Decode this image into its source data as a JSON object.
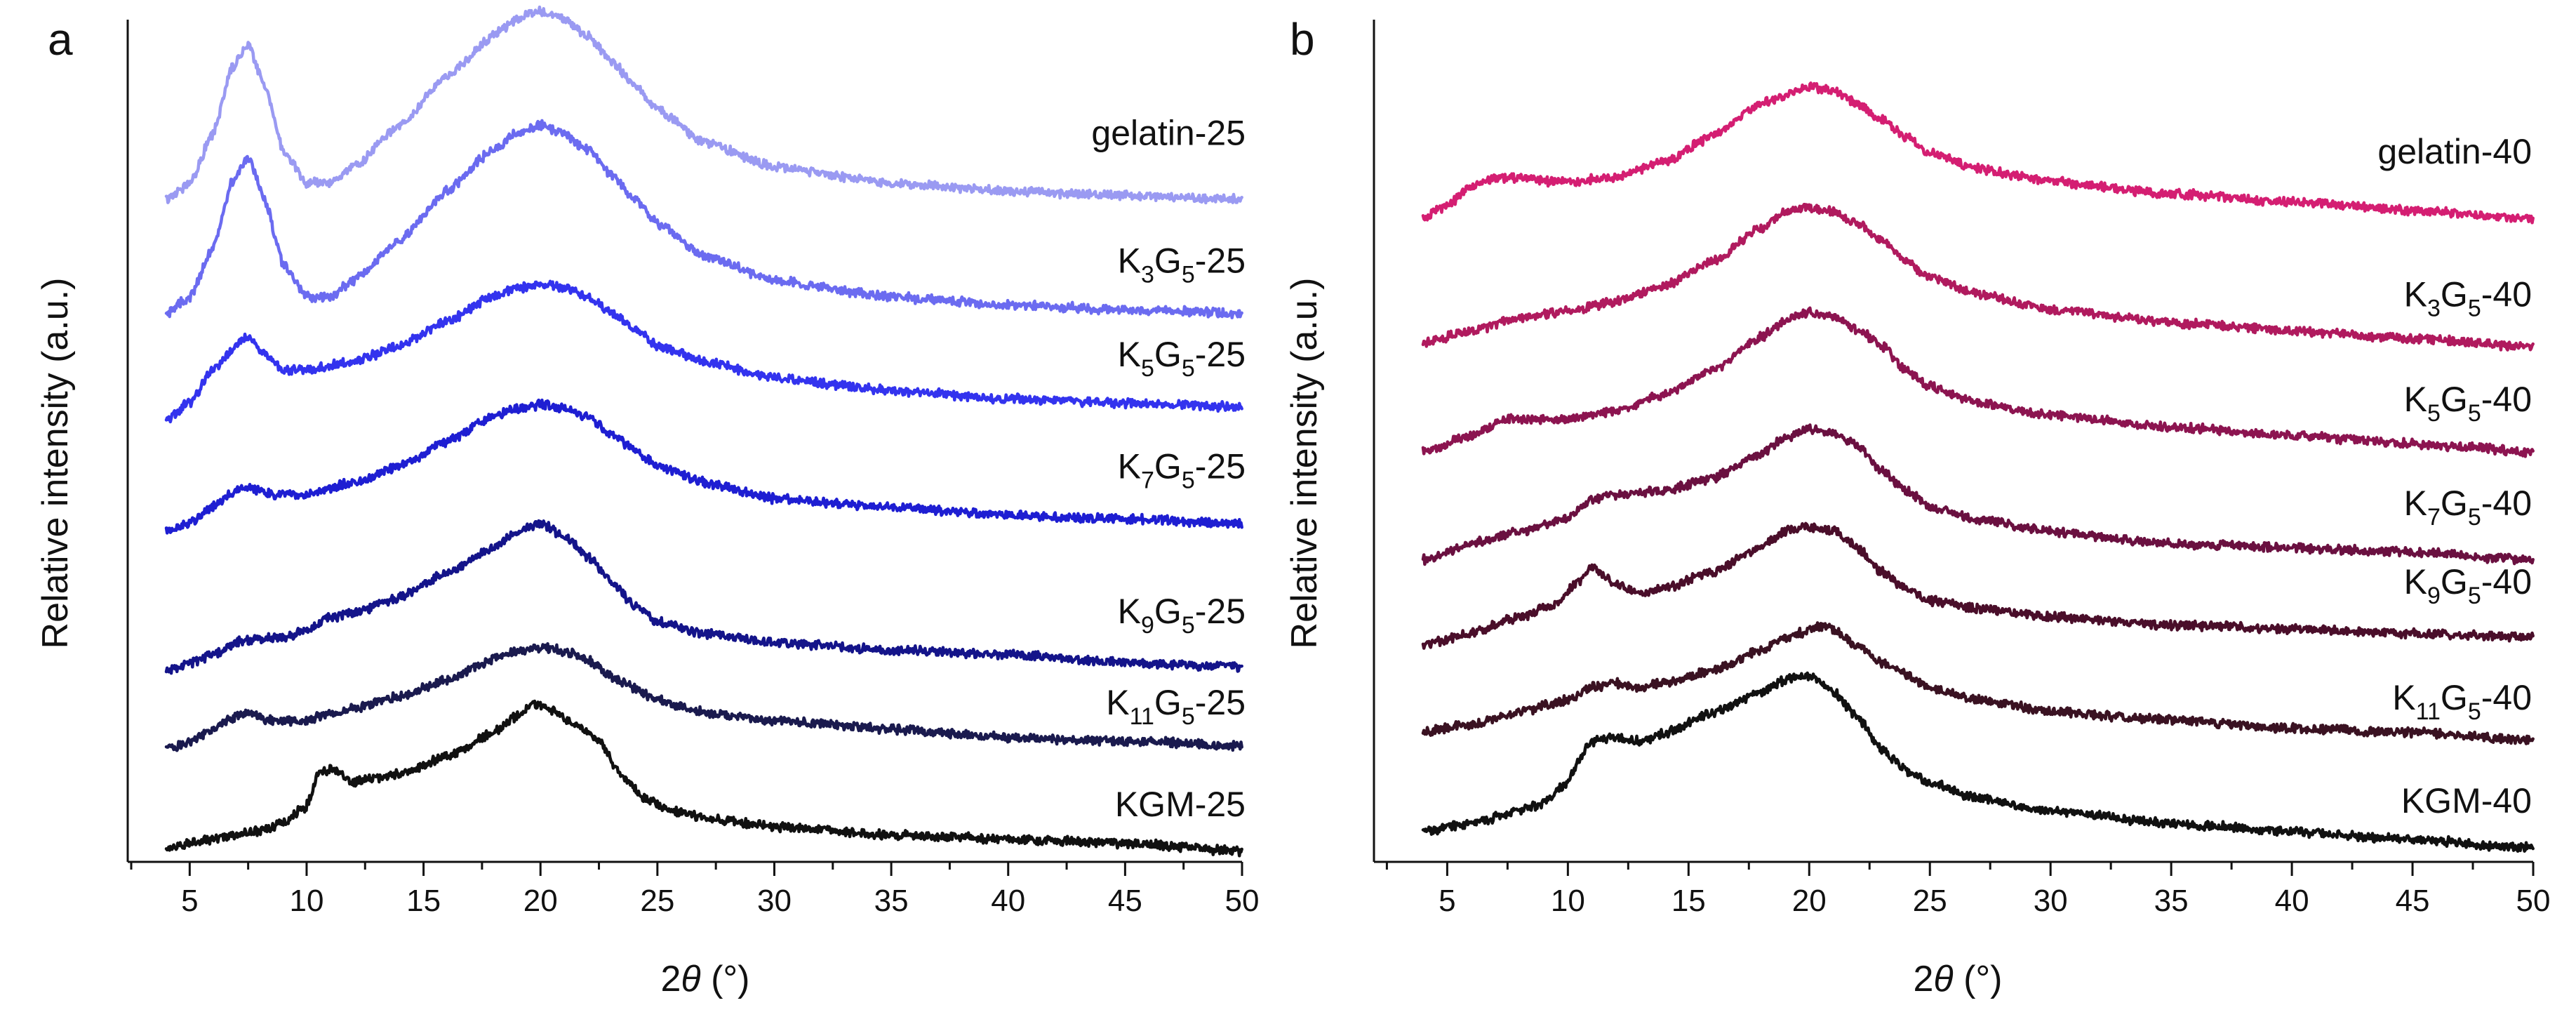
{
  "chart_data": [
    {
      "type": "line",
      "panel": "a",
      "xlabel_prefix": "2",
      "xlabel_symbol": "θ",
      "xlabel_unit": " (°)",
      "ylabel": "Relative intensity (a.u.)",
      "xlim": [
        3,
        50
      ],
      "ylim": [
        0,
        1
      ],
      "x_ticks": [
        5,
        10,
        15,
        20,
        25,
        30,
        35,
        40,
        45,
        50
      ],
      "grid": false,
      "series": [
        {
          "name": "gelatin-25",
          "label_parts": [
            [
              "gelatin-25",
              false
            ]
          ],
          "color": "#9a9af2",
          "offset": 0.808,
          "scale": 1.0,
          "x": [
            4,
            5,
            6,
            6.8,
            7.5,
            8.2,
            9,
            10,
            11,
            12,
            14,
            16,
            18,
            19,
            20,
            21,
            22,
            23,
            24,
            25,
            27,
            30,
            35,
            40,
            45,
            50
          ],
          "y": [
            0.0,
            0.02,
            0.08,
            0.16,
            0.19,
            0.14,
            0.06,
            0.02,
            0.02,
            0.04,
            0.09,
            0.15,
            0.2,
            0.22,
            0.23,
            0.22,
            0.2,
            0.17,
            0.14,
            0.11,
            0.07,
            0.04,
            0.02,
            0.01,
            0.005,
            0.0
          ]
        },
        {
          "name": "K3G5-25",
          "label_parts": [
            [
              "K",
              false
            ],
            [
              "3",
              true
            ],
            [
              "G",
              false
            ],
            [
              "5",
              true
            ],
            [
              "-25",
              false
            ]
          ],
          "color": "#6b6bf0",
          "offset": 0.669,
          "scale": 1.0,
          "x": [
            4,
            5,
            6,
            6.8,
            7.5,
            8.2,
            9,
            10,
            11,
            12,
            14,
            16,
            18,
            19,
            20,
            21,
            22,
            23,
            24,
            25,
            27,
            30,
            35,
            40,
            45,
            50
          ],
          "y": [
            0.0,
            0.02,
            0.08,
            0.16,
            0.19,
            0.14,
            0.06,
            0.02,
            0.02,
            0.04,
            0.09,
            0.15,
            0.2,
            0.22,
            0.23,
            0.22,
            0.2,
            0.17,
            0.14,
            0.11,
            0.07,
            0.04,
            0.02,
            0.01,
            0.005,
            0.0
          ]
        },
        {
          "name": "K5G5-25",
          "label_parts": [
            [
              "K",
              false
            ],
            [
              "5",
              true
            ],
            [
              "G",
              false
            ],
            [
              "5",
              true
            ],
            [
              "-25",
              false
            ]
          ],
          "color": "#3333ee",
          "offset": 0.54,
          "scale": 1.0,
          "x": [
            4,
            5,
            6,
            7,
            7.5,
            8.2,
            9,
            10,
            12,
            14,
            16,
            18,
            19,
            20,
            21,
            22,
            23,
            24,
            25,
            27,
            30,
            35,
            40,
            45,
            50
          ],
          "y": [
            0.0,
            0.02,
            0.06,
            0.09,
            0.1,
            0.08,
            0.06,
            0.06,
            0.07,
            0.09,
            0.12,
            0.15,
            0.16,
            0.165,
            0.16,
            0.15,
            0.13,
            0.11,
            0.09,
            0.07,
            0.05,
            0.035,
            0.025,
            0.02,
            0.015
          ]
        },
        {
          "name": "K7G5-25",
          "label_parts": [
            [
              "K",
              false
            ],
            [
              "7",
              true
            ],
            [
              "G",
              false
            ],
            [
              "5",
              true
            ],
            [
              "-25",
              false
            ]
          ],
          "color": "#1e1ed2",
          "offset": 0.403,
          "scale": 1.0,
          "x": [
            4,
            5,
            6,
            7,
            7.5,
            8.5,
            10,
            12,
            14,
            16,
            18,
            19,
            20,
            21,
            22,
            23,
            24,
            25,
            27,
            30,
            35,
            40,
            45,
            50
          ],
          "y": [
            0.0,
            0.01,
            0.03,
            0.05,
            0.055,
            0.045,
            0.045,
            0.06,
            0.08,
            0.11,
            0.14,
            0.15,
            0.155,
            0.15,
            0.14,
            0.12,
            0.1,
            0.08,
            0.06,
            0.04,
            0.03,
            0.02,
            0.015,
            0.01
          ]
        },
        {
          "name": "K9G5-25",
          "label_parts": [
            [
              "K",
              false
            ],
            [
              "9",
              true
            ],
            [
              "G",
              false
            ],
            [
              "5",
              true
            ],
            [
              "-25",
              false
            ]
          ],
          "color": "#14148a",
          "offset": 0.233,
          "scale": 1.0,
          "x": [
            4,
            5,
            6,
            7,
            8,
            9,
            10,
            11,
            12,
            14,
            16,
            18,
            19,
            20,
            21,
            22,
            23,
            24,
            25,
            27,
            30,
            35,
            40,
            45,
            50
          ],
          "y": [
            0.0,
            0.01,
            0.02,
            0.035,
            0.04,
            0.04,
            0.05,
            0.065,
            0.07,
            0.09,
            0.12,
            0.15,
            0.17,
            0.18,
            0.165,
            0.14,
            0.11,
            0.08,
            0.06,
            0.045,
            0.035,
            0.025,
            0.02,
            0.01,
            0.005
          ]
        },
        {
          "name": "K11G5-25",
          "label_parts": [
            [
              "K",
              false
            ],
            [
              "11",
              true
            ],
            [
              "G",
              false
            ],
            [
              "5",
              true
            ],
            [
              "-25",
              false
            ]
          ],
          "color": "#1a1a4e",
          "offset": 0.137,
          "scale": 1.0,
          "x": [
            4,
            5,
            6,
            7,
            7.5,
            8.5,
            10,
            11,
            12,
            14,
            16,
            18,
            19,
            20,
            21,
            22,
            23,
            24,
            25,
            27,
            30,
            35,
            40,
            45,
            50
          ],
          "y": [
            0.0,
            0.01,
            0.025,
            0.04,
            0.045,
            0.035,
            0.035,
            0.045,
            0.05,
            0.065,
            0.085,
            0.11,
            0.12,
            0.125,
            0.12,
            0.11,
            0.09,
            0.075,
            0.06,
            0.045,
            0.035,
            0.025,
            0.015,
            0.01,
            0.005
          ]
        },
        {
          "name": "KGM-25",
          "label_parts": [
            [
              "KGM-25",
              false
            ]
          ],
          "color": "#111111",
          "offset": 0.018,
          "scale": 1.0,
          "x": [
            4,
            6,
            8,
            9,
            10,
            10.5,
            11,
            12,
            14,
            16,
            18,
            19,
            19.7,
            20.5,
            21.5,
            22.5,
            23.5,
            24.5,
            25.5,
            27,
            30,
            35,
            40,
            45,
            50
          ],
          "y": [
            0.0,
            0.01,
            0.02,
            0.03,
            0.05,
            0.09,
            0.095,
            0.08,
            0.09,
            0.11,
            0.14,
            0.16,
            0.175,
            0.165,
            0.15,
            0.13,
            0.085,
            0.06,
            0.045,
            0.035,
            0.025,
            0.015,
            0.01,
            0.005,
            -0.005
          ]
        }
      ]
    },
    {
      "type": "line",
      "panel": "b",
      "xlabel_prefix": "2",
      "xlabel_symbol": "θ",
      "xlabel_unit": " (°)",
      "ylabel": "Relative intensity (a.u.)",
      "xlim": [
        3,
        50
      ],
      "ylim": [
        0,
        1
      ],
      "x_ticks": [
        5,
        10,
        15,
        20,
        25,
        30,
        35,
        40,
        45,
        50
      ],
      "grid": false,
      "series": [
        {
          "name": "gelatin-40",
          "label_parts": [
            [
              "gelatin-40",
              false
            ]
          ],
          "color": "#d41e72",
          "offset": 0.785,
          "scale": 1.0,
          "x": [
            4,
            5,
            6,
            7,
            8,
            9,
            10,
            12,
            14,
            16,
            18,
            19,
            20,
            21,
            22,
            23,
            24,
            25,
            27,
            30,
            35,
            40,
            45,
            50
          ],
          "y": [
            0.0,
            0.015,
            0.04,
            0.05,
            0.05,
            0.045,
            0.045,
            0.05,
            0.07,
            0.1,
            0.14,
            0.15,
            0.16,
            0.155,
            0.14,
            0.12,
            0.1,
            0.08,
            0.06,
            0.045,
            0.03,
            0.02,
            0.01,
            0.0
          ]
        },
        {
          "name": "K3G5-40",
          "label_parts": [
            [
              "K",
              false
            ],
            [
              "3",
              true
            ],
            [
              "G",
              false
            ],
            [
              "5",
              true
            ],
            [
              "-40",
              false
            ]
          ],
          "color": "#b01a5e",
          "offset": 0.633,
          "scale": 1.0,
          "x": [
            4,
            6,
            8,
            10,
            12,
            14,
            16,
            18,
            19,
            20,
            21,
            22,
            23,
            24,
            25,
            27,
            30,
            35,
            40,
            45,
            50
          ],
          "y": [
            0.0,
            0.015,
            0.03,
            0.04,
            0.05,
            0.07,
            0.1,
            0.14,
            0.16,
            0.165,
            0.16,
            0.145,
            0.125,
            0.1,
            0.08,
            0.06,
            0.04,
            0.025,
            0.015,
            0.005,
            -0.005
          ]
        },
        {
          "name": "K5G5-40",
          "label_parts": [
            [
              "K",
              false
            ],
            [
              "5",
              true
            ],
            [
              "G",
              false
            ],
            [
              "5",
              true
            ],
            [
              "-40",
              false
            ]
          ],
          "color": "#8c1450",
          "offset": 0.5,
          "scale": 1.0,
          "x": [
            4,
            6,
            7.5,
            9,
            10,
            12,
            14,
            16,
            18,
            19,
            20,
            21,
            22,
            23,
            24,
            25,
            27,
            30,
            35,
            40,
            45,
            50
          ],
          "y": [
            0.0,
            0.02,
            0.04,
            0.04,
            0.04,
            0.05,
            0.07,
            0.1,
            0.14,
            0.16,
            0.17,
            0.165,
            0.15,
            0.13,
            0.1,
            0.08,
            0.06,
            0.045,
            0.03,
            0.02,
            0.01,
            0.0
          ]
        },
        {
          "name": "K7G5-40",
          "label_parts": [
            [
              "K",
              false
            ],
            [
              "7",
              true
            ],
            [
              "G",
              false
            ],
            [
              "5",
              true
            ],
            [
              "-40",
              false
            ]
          ],
          "color": "#6a1040",
          "offset": 0.368,
          "scale": 1.0,
          "x": [
            4,
            6,
            8,
            10,
            11,
            12,
            14,
            16,
            18,
            19,
            20,
            21,
            22,
            23,
            24,
            25,
            27,
            30,
            35,
            40,
            45,
            50
          ],
          "y": [
            0.0,
            0.02,
            0.035,
            0.05,
            0.075,
            0.08,
            0.085,
            0.1,
            0.13,
            0.15,
            0.16,
            0.155,
            0.14,
            0.11,
            0.085,
            0.065,
            0.05,
            0.035,
            0.02,
            0.015,
            0.01,
            0.0
          ]
        },
        {
          "name": "K9G5-40",
          "label_parts": [
            [
              "K",
              false
            ],
            [
              "9",
              true
            ],
            [
              "G",
              false
            ],
            [
              "5",
              true
            ],
            [
              "-40",
              false
            ]
          ],
          "color": "#4a0e2a",
          "offset": 0.264,
          "scale": 1.0,
          "x": [
            4,
            6,
            8,
            9.5,
            10.5,
            11,
            12,
            13,
            14,
            16,
            18,
            19,
            20,
            21,
            22,
            23,
            24,
            25,
            27,
            30,
            35,
            40,
            45,
            50
          ],
          "y": [
            0.0,
            0.015,
            0.035,
            0.05,
            0.08,
            0.095,
            0.075,
            0.065,
            0.07,
            0.09,
            0.12,
            0.14,
            0.145,
            0.14,
            0.12,
            0.09,
            0.07,
            0.055,
            0.045,
            0.035,
            0.025,
            0.02,
            0.015,
            0.01
          ]
        },
        {
          "name": "K11G5-40",
          "label_parts": [
            [
              "K",
              false
            ],
            [
              "11",
              true
            ],
            [
              "G",
              false
            ],
            [
              "5",
              true
            ],
            [
              "-40",
              false
            ]
          ],
          "color": "#3a1222",
          "offset": 0.158,
          "scale": 1.0,
          "x": [
            4,
            6,
            8,
            10,
            11,
            12,
            13,
            14,
            16,
            18,
            19,
            20,
            20.5,
            21,
            22,
            23,
            24,
            25,
            27,
            30,
            35,
            40,
            45,
            50
          ],
          "y": [
            0.0,
            0.01,
            0.025,
            0.04,
            0.055,
            0.06,
            0.055,
            0.06,
            0.075,
            0.1,
            0.115,
            0.125,
            0.13,
            0.125,
            0.105,
            0.085,
            0.07,
            0.055,
            0.04,
            0.025,
            0.015,
            0.005,
            0.0,
            -0.01
          ]
        },
        {
          "name": "KGM-40",
          "label_parts": [
            [
              "KGM-40",
              false
            ]
          ],
          "color": "#111111",
          "offset": 0.037,
          "scale": 1.0,
          "x": [
            4,
            6,
            8,
            9,
            10,
            10.5,
            11,
            12,
            13,
            14,
            16,
            18,
            19,
            20,
            21,
            22,
            23,
            24,
            25,
            27,
            30,
            35,
            40,
            45,
            50
          ],
          "y": [
            0.0,
            0.01,
            0.025,
            0.035,
            0.06,
            0.09,
            0.11,
            0.115,
            0.11,
            0.12,
            0.145,
            0.17,
            0.185,
            0.19,
            0.17,
            0.14,
            0.1,
            0.075,
            0.06,
            0.04,
            0.025,
            0.01,
            0.0,
            -0.01,
            -0.02
          ]
        }
      ]
    }
  ]
}
